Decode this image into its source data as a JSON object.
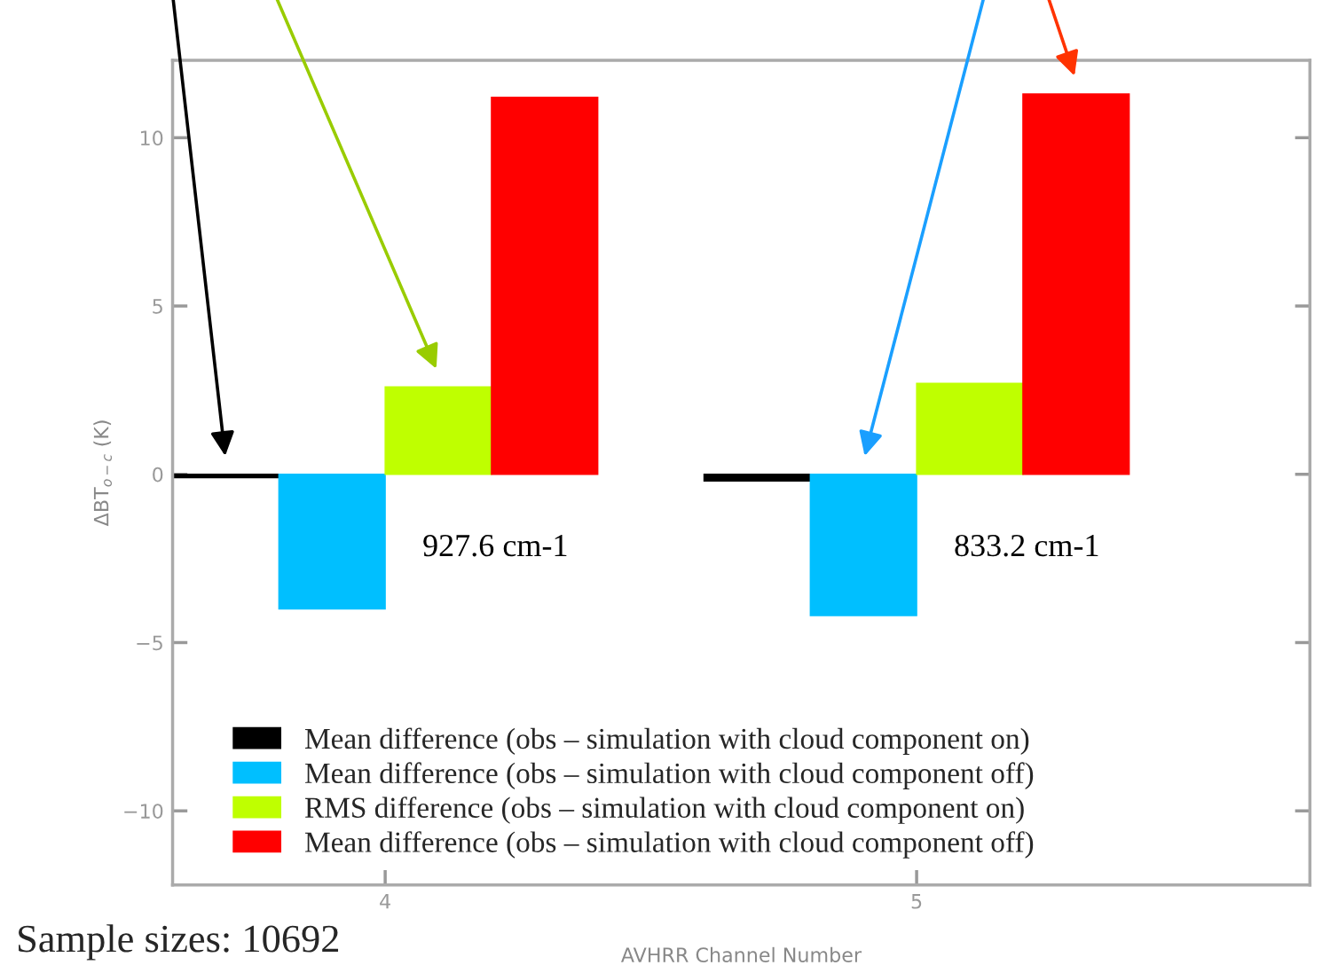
{
  "chart_data": {
    "type": "bar",
    "xlabel": "AVHRR Channel Number",
    "ylabel": "ΔBT$_{o−c}$ (K)",
    "categories": [
      "4",
      "5"
    ],
    "series": [
      {
        "name": "Mean difference (obs – simulation with cloud component on)",
        "color": "#000000",
        "values": [
          -0.1,
          -0.2
        ]
      },
      {
        "name": "Mean difference (obs – simulation with cloud component off)",
        "color": "#00bfff",
        "values": [
          -4.0,
          -4.2
        ]
      },
      {
        "name": "RMS difference (obs – simulation with cloud component on)",
        "color": "#bfff00",
        "values": [
          2.6,
          2.7
        ]
      },
      {
        "name": "Mean difference (obs – simulation with cloud component off)",
        "color": "#ff0000",
        "values": [
          11.2,
          11.3
        ]
      }
    ],
    "ylim": [
      -12.2,
      12.3
    ],
    "yticks": [
      {
        "value": -10,
        "label": "−10"
      },
      {
        "value": -5,
        "label": "−5"
      },
      0,
      5,
      10
    ],
    "annotations": [
      {
        "text": "927.6 cm-1",
        "x": "4",
        "y": -2.2
      },
      {
        "text": "833.2 cm-1",
        "x": "5",
        "y": -2.2
      },
      "Sample sizes: 10692"
    ],
    "legend": "bottom left",
    "grid": false
  }
}
